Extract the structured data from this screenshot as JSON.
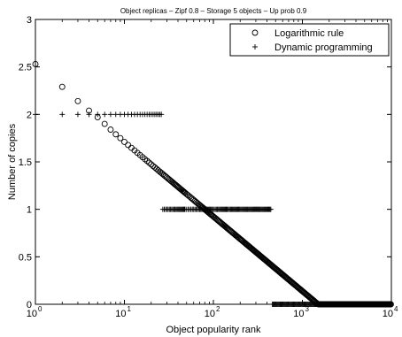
{
  "chart_data": {
    "type": "scatter",
    "title": "Object replicas – Zipf 0.8 – Storage 5 objects – Up prob 0.9",
    "xlabel": "Object popularity rank",
    "ylabel": "Number of copies",
    "xscale": "log",
    "xlim": [
      1,
      10000
    ],
    "ylim": [
      0,
      3
    ],
    "grid": false,
    "legend_position": "top-right",
    "xtick_labels": [
      {
        "base": "10",
        "exp": "0",
        "value": 1
      },
      {
        "base": "10",
        "exp": "1",
        "value": 10
      },
      {
        "base": "10",
        "exp": "2",
        "value": 100
      },
      {
        "base": "10",
        "exp": "3",
        "value": 1000
      },
      {
        "base": "10",
        "exp": "4",
        "value": 10000
      }
    ],
    "ytick_labels": [
      "0",
      "0.5",
      "1",
      "1.5",
      "2",
      "2.5",
      "3"
    ],
    "series": [
      {
        "name": "Logarithmic rule",
        "marker": "circle",
        "x": [
          1,
          2,
          3,
          4,
          5,
          6,
          7,
          8,
          9,
          10,
          1500,
          10000
        ],
        "y": [
          2.53,
          2.29,
          2.14,
          2.04,
          1.97,
          1.9,
          1.84,
          1.79,
          1.75,
          1.71,
          0,
          0
        ]
      },
      {
        "name": "Dynamic programming",
        "marker": "plus",
        "x": [
          1,
          26,
          27,
          450,
          460,
          10000
        ],
        "y": [
          2,
          2,
          1,
          1,
          0,
          0
        ]
      }
    ]
  }
}
